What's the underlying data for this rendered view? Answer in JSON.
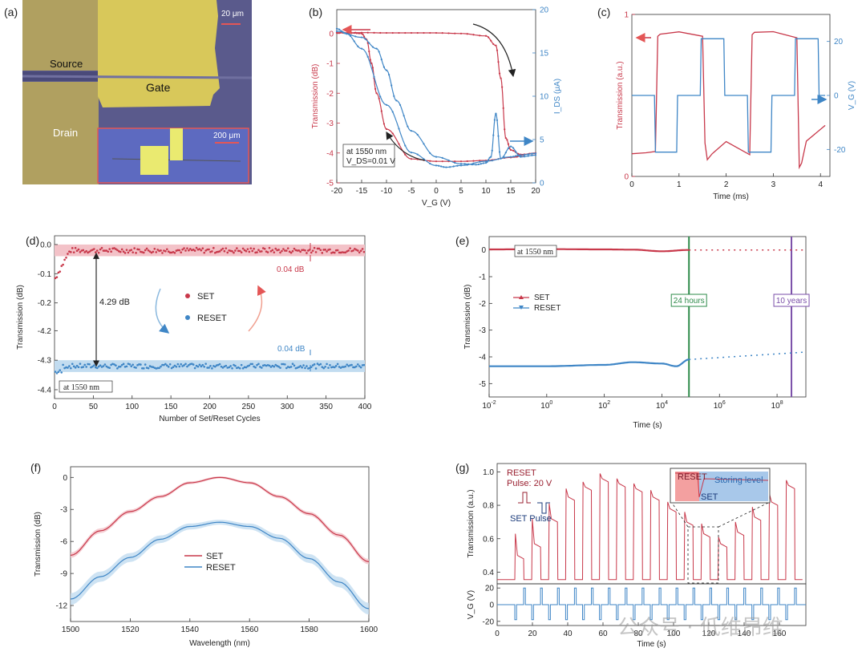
{
  "panels": {
    "a": {
      "label": "(a)",
      "source": "Source",
      "gate": "Gate",
      "drain": "Drain",
      "scale_main": "20 μm",
      "scale_inset": "200 μm",
      "colors": {
        "substrate": "#5a5a8c",
        "gold": "#d8c85a",
        "electrode": "#b0a060",
        "outline": "#e45656"
      }
    }
  },
  "chart_data": [
    {
      "id": "b",
      "panel_label": "(b)",
      "type": "line",
      "xlabel": "V_G (V)",
      "ylabel": "Transmission (dB)",
      "y2label": "I_DS (μA)",
      "xlim": [
        -20,
        20
      ],
      "ylim": [
        -5,
        0.8
      ],
      "y2lim": [
        0,
        20
      ],
      "xticks": [
        -20,
        -15,
        -10,
        -5,
        0,
        5,
        10,
        15,
        20
      ],
      "yticks": [
        0,
        -1,
        -2,
        -3,
        -4,
        -5
      ],
      "y2ticks": [
        0,
        5,
        10,
        15,
        20
      ],
      "annotation": [
        "at 1550 nm",
        "V_DS=0.01 V"
      ],
      "series": [
        {
          "axis": "left",
          "color": "#c8384a",
          "x": [
            -20,
            -15,
            -10,
            -5,
            0,
            5,
            10,
            12,
            13,
            14,
            15,
            17,
            20
          ],
          "y": [
            0.02,
            0.03,
            0.02,
            0.02,
            0.02,
            0.0,
            -0.08,
            -0.4,
            -1.5,
            -3.5,
            -3.9,
            -4.05,
            -4.02
          ]
        },
        {
          "axis": "left",
          "color": "#c8384a",
          "x": [
            20,
            15,
            10,
            5,
            0,
            -5,
            -10,
            -12,
            -13,
            -14,
            -15,
            -17,
            -20
          ],
          "y": [
            -4.0,
            -4.15,
            -4.25,
            -4.28,
            -4.28,
            -4.2,
            -3.2,
            -2.0,
            -1.0,
            -0.2,
            0.0,
            0.02,
            0.03
          ]
        },
        {
          "axis": "right",
          "color": "#3f86c6",
          "x": [
            -20,
            -15,
            -12,
            -10,
            -8,
            -5,
            0,
            5,
            8,
            10,
            11,
            12,
            13,
            15,
            17,
            20
          ],
          "y": [
            17.5,
            16.8,
            15.5,
            13,
            9.5,
            6,
            3,
            2.2,
            2.1,
            2.3,
            3.0,
            8,
            2.8,
            4.2,
            3.0,
            3.2
          ]
        },
        {
          "axis": "right",
          "color": "#3f86c6",
          "x": [
            20,
            17,
            15,
            10,
            5,
            2,
            0,
            -5,
            -10,
            -15,
            -18,
            -20
          ],
          "y": [
            3.4,
            3.2,
            3.0,
            2.5,
            2.0,
            1.8,
            2.0,
            3.5,
            9,
            15.5,
            17.2,
            17.8
          ]
        }
      ]
    },
    {
      "id": "c",
      "panel_label": "(c)",
      "type": "line",
      "xlabel": "Time (ms)",
      "ylabel": "Transmission (a.u.)",
      "y2label": "V_G (V)",
      "xlim": [
        0,
        4.2
      ],
      "ylim": [
        0,
        1
      ],
      "y2lim": [
        -30,
        30
      ],
      "xticks": [
        0,
        1,
        2,
        3,
        4
      ],
      "yticks": [
        0,
        1
      ],
      "y2ticks": [
        20,
        0,
        -20
      ],
      "series": [
        {
          "axis": "left",
          "color": "#c8384a",
          "x": [
            0,
            0.3,
            0.5,
            0.55,
            0.6,
            1.0,
            1.5,
            1.55,
            1.6,
            1.7,
            2.0,
            2.5,
            2.55,
            2.6,
            3.0,
            3.5,
            3.55,
            3.6,
            3.7,
            4.1
          ],
          "y": [
            0.14,
            0.15,
            0.16,
            0.87,
            0.88,
            0.89,
            0.86,
            0.2,
            0.1,
            0.14,
            0.22,
            0.14,
            0.88,
            0.89,
            0.89,
            0.85,
            0.05,
            0.08,
            0.22,
            0.32
          ]
        },
        {
          "axis": "right",
          "color": "#3f86c6",
          "x": [
            0,
            0.48,
            0.5,
            0.95,
            0.97,
            1.45,
            1.47,
            1.95,
            1.97,
            2.45,
            2.47,
            2.95,
            2.97,
            3.45,
            3.47,
            3.95,
            3.97,
            4.1
          ],
          "y": [
            0,
            0,
            -21,
            -21,
            0,
            0,
            21,
            21,
            0,
            0,
            -21,
            -21,
            0,
            0,
            21,
            21,
            0,
            0
          ]
        }
      ]
    },
    {
      "id": "d",
      "panel_label": "(d)",
      "type": "scatter",
      "xlabel": "Number of Set/Reset Cycles",
      "ylabel": "Transmission (dB)",
      "xlim": [
        0,
        400
      ],
      "xticks": [
        0,
        50,
        100,
        150,
        200,
        250,
        300,
        350,
        400
      ],
      "yticks_upper": [
        "0.0",
        "-0.1",
        "-0.2"
      ],
      "yticks_lower": [
        "-4.2",
        "-4.3",
        "-4.4"
      ],
      "upper_range": [
        -0.22,
        0.03
      ],
      "lower_range": [
        -4.43,
        -4.18
      ],
      "set_level": -0.02,
      "reset_level": -4.32,
      "reset_start": -4.34,
      "band": 0.04,
      "legend": [
        "SET",
        "RESET"
      ],
      "annotations": [
        "4.29 dB",
        "0.04 dB",
        "0.04 dB",
        "at 1550 nm"
      ],
      "colors": {
        "set": "#c8384a",
        "reset": "#3f86c6",
        "set_band": "#f3c2c8",
        "reset_band": "#c2dcf0"
      }
    },
    {
      "id": "e",
      "panel_label": "(e)",
      "type": "line",
      "xlabel": "Time (s)",
      "ylabel": "Transmission (dB)",
      "xlim_log10": [
        -2,
        9
      ],
      "ylim": [
        -5.5,
        0.5
      ],
      "xticks_log10": [
        -2,
        0,
        2,
        4,
        6,
        8
      ],
      "yticks": [
        0,
        -1,
        -2,
        -3,
        -4,
        -5
      ],
      "legend": [
        "SET",
        "RESET"
      ],
      "annotation": "at 1550 nm",
      "markers": [
        {
          "label": "24 hours",
          "log10_x": 4.94,
          "color": "#2e8b4a"
        },
        {
          "label": "10 years",
          "log10_x": 8.5,
          "color": "#7a4ea8"
        }
      ],
      "series": [
        {
          "name": "SET",
          "color": "#c8384a",
          "log10_x": [
            -2,
            0,
            2,
            3,
            4,
            4.94
          ],
          "y": [
            0.02,
            0.03,
            0.02,
            0.01,
            -0.05,
            0.0
          ]
        },
        {
          "name": "RESET",
          "color": "#3f86c6",
          "log10_x": [
            -2,
            0,
            2,
            3,
            4,
            4.5,
            4.94
          ],
          "y": [
            -4.35,
            -4.35,
            -4.3,
            -4.2,
            -4.25,
            -4.35,
            -4.1
          ]
        }
      ],
      "extrapolation": [
        {
          "color": "#c8384a",
          "log10_x": [
            4.94,
            9
          ],
          "y": [
            0.0,
            0.0
          ]
        },
        {
          "color": "#3f86c6",
          "log10_x": [
            4.94,
            9
          ],
          "y": [
            -4.1,
            -3.82
          ]
        }
      ]
    },
    {
      "id": "f",
      "panel_label": "(f)",
      "type": "line",
      "xlabel": "Wavelength (nm)",
      "ylabel": "Transmission (dB)",
      "xlim": [
        1500,
        1600
      ],
      "ylim": [
        -13.5,
        1
      ],
      "xticks": [
        1500,
        1520,
        1540,
        1560,
        1580,
        1600
      ],
      "yticks": [
        0,
        -3,
        -6,
        -9,
        -12
      ],
      "legend": [
        "SET",
        "RESET"
      ],
      "series": [
        {
          "name": "SET",
          "color": "#c8384a",
          "band_color": "#f3c2c8",
          "x": [
            1500,
            1510,
            1520,
            1530,
            1540,
            1550,
            1560,
            1570,
            1580,
            1590,
            1600
          ],
          "y": [
            -7.3,
            -5.0,
            -3.2,
            -1.8,
            -0.5,
            0.0,
            -0.5,
            -1.8,
            -3.4,
            -5.4,
            -7.9
          ],
          "band": 0.25
        },
        {
          "name": "RESET",
          "color": "#3f86c6",
          "band_color": "#c2dcf0",
          "x": [
            1500,
            1510,
            1520,
            1530,
            1540,
            1550,
            1560,
            1570,
            1580,
            1590,
            1600
          ],
          "y": [
            -11.4,
            -9.3,
            -7.5,
            -5.8,
            -4.6,
            -4.2,
            -4.6,
            -5.7,
            -7.6,
            -9.8,
            -12.3
          ],
          "band": 0.55
        }
      ]
    },
    {
      "id": "g",
      "panel_label": "(g)",
      "type": "line",
      "xlabel": "Time (s)",
      "ylabel": "Transmission (a.u.)",
      "ylabel2": "V_G (V)",
      "xlim": [
        0,
        175
      ],
      "ylim": [
        0.33,
        1.05
      ],
      "ylim_v": [
        -25,
        25
      ],
      "xticks": [
        0,
        20,
        40,
        60,
        80,
        100,
        120,
        140,
        160
      ],
      "yticks": [
        0.4,
        0.6,
        0.8,
        1.0
      ],
      "yticks_v": [
        20,
        0,
        -20
      ],
      "text": [
        "RESET",
        "Pulse: 20 V",
        "SET Pulse"
      ],
      "inset": [
        "RESET",
        "SET",
        "Storing level"
      ],
      "set_peaks": [
        0.63,
        0.72,
        0.81,
        0.9,
        0.94,
        0.99,
        0.96,
        0.93,
        0.89,
        0.82,
        0.76,
        0.69,
        0.61,
        0.7,
        0.79,
        0.87,
        0.95
      ],
      "set_levels": [
        0.48,
        0.55,
        0.7,
        0.83,
        0.89,
        0.94,
        0.91,
        0.88,
        0.83,
        0.76,
        0.68,
        0.61,
        0.55,
        0.62,
        0.71,
        0.8,
        0.9
      ],
      "reset_level": 0.355,
      "colors": {
        "trans": "#c8384a",
        "vg": "#3f86c6",
        "inset_reset": "#f3a0a0",
        "inset_set": "#a8c8ea"
      }
    }
  ],
  "watermark": "公众号 · 低维昂维"
}
